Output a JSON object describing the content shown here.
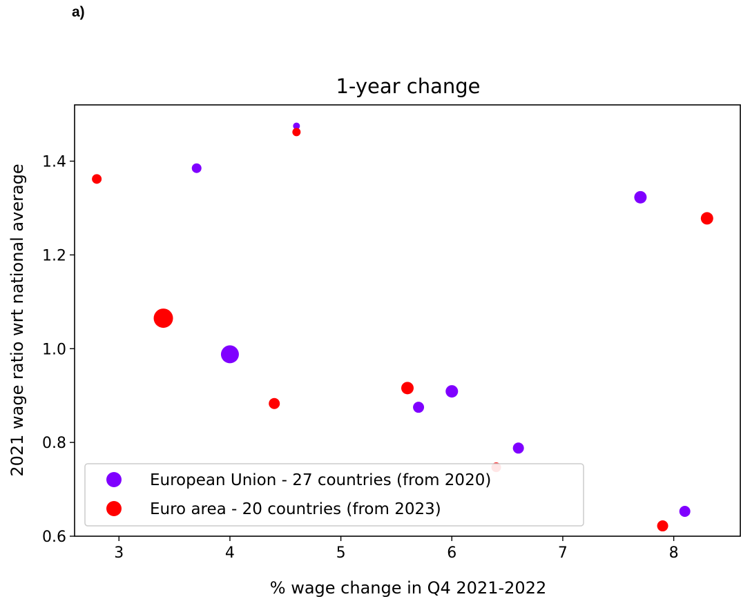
{
  "panel_label": "a)",
  "chart_data": {
    "type": "scatter",
    "title": "1-year change",
    "xlabel": "% wage change in Q4 2021-2022",
    "ylabel": "2021 wage ratio wrt national average",
    "xlim": [
      2.6,
      8.6
    ],
    "ylim": [
      0.6,
      1.52
    ],
    "xticks": [
      3,
      4,
      5,
      6,
      7,
      8
    ],
    "yticks": [
      0.6,
      0.8,
      1.0,
      1.2,
      1.4
    ],
    "ytick_labels": [
      "0.6",
      "0.8",
      "1.0",
      "1.2",
      "1.4"
    ],
    "legend_position": "lower-left",
    "grid": false,
    "series": [
      {
        "name": "European Union - 27 countries (from 2020)",
        "color": "#7f00ff",
        "points": [
          {
            "x": 4.6,
            "y": 1.475,
            "size": 5
          },
          {
            "x": 3.7,
            "y": 1.385,
            "size": 7
          },
          {
            "x": 7.7,
            "y": 1.323,
            "size": 9
          },
          {
            "x": 4.0,
            "y": 0.988,
            "size": 13
          },
          {
            "x": 6.0,
            "y": 0.909,
            "size": 9
          },
          {
            "x": 5.7,
            "y": 0.875,
            "size": 8
          },
          {
            "x": 6.6,
            "y": 0.788,
            "size": 8
          },
          {
            "x": 8.1,
            "y": 0.653,
            "size": 8
          }
        ]
      },
      {
        "name": "Euro area - 20 countries (from 2023)",
        "color": "#ff0000",
        "points": [
          {
            "x": 4.6,
            "y": 1.462,
            "size": 6
          },
          {
            "x": 2.8,
            "y": 1.362,
            "size": 7
          },
          {
            "x": 8.3,
            "y": 1.278,
            "size": 9
          },
          {
            "x": 3.4,
            "y": 1.065,
            "size": 14
          },
          {
            "x": 4.4,
            "y": 0.883,
            "size": 8
          },
          {
            "x": 5.6,
            "y": 0.916,
            "size": 9
          },
          {
            "x": 6.4,
            "y": 0.747,
            "size": 7
          },
          {
            "x": 7.9,
            "y": 0.622,
            "size": 8
          }
        ]
      }
    ]
  }
}
